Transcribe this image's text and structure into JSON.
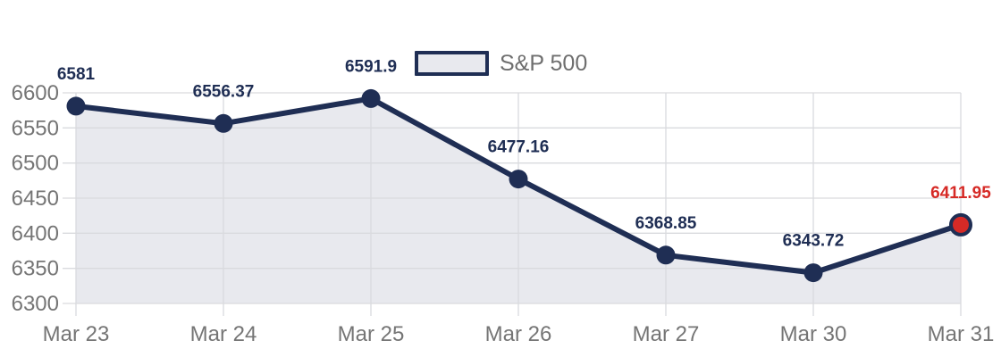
{
  "legend": {
    "label": "S&P 500"
  },
  "colors": {
    "line": "#1f2e54",
    "marker": "#1f2e54",
    "last_marker_fill": "#d62a26",
    "area_fill": "#e8e9ee",
    "grid": "#d9dade",
    "axis_text": "#757575",
    "data_label": "#1f2e54",
    "last_data_label": "#d62a26",
    "legend_text": "#6e6e6e",
    "background": "#ffffff"
  },
  "chart_data": {
    "type": "area",
    "title": "",
    "xlabel": "",
    "ylabel": "",
    "categories": [
      "Mar 23",
      "Mar 24",
      "Mar 25",
      "Mar 26",
      "Mar 27",
      "Mar 30",
      "Mar 31"
    ],
    "series": [
      {
        "name": "S&P 500",
        "values": [
          6581,
          6556.37,
          6591.9,
          6477.16,
          6368.85,
          6343.72,
          6411.95
        ]
      }
    ],
    "data_labels": [
      "6581",
      "6556.37",
      "6591.9",
      "6477.16",
      "6368.85",
      "6343.72",
      "6411.95"
    ],
    "ylim": [
      6300,
      6600
    ],
    "ytick_labels": [
      "6300",
      "6350",
      "6400",
      "6450",
      "6500",
      "6550",
      "6600"
    ],
    "grid": true,
    "legend_position": "top-center",
    "highlight_last_point": true
  }
}
